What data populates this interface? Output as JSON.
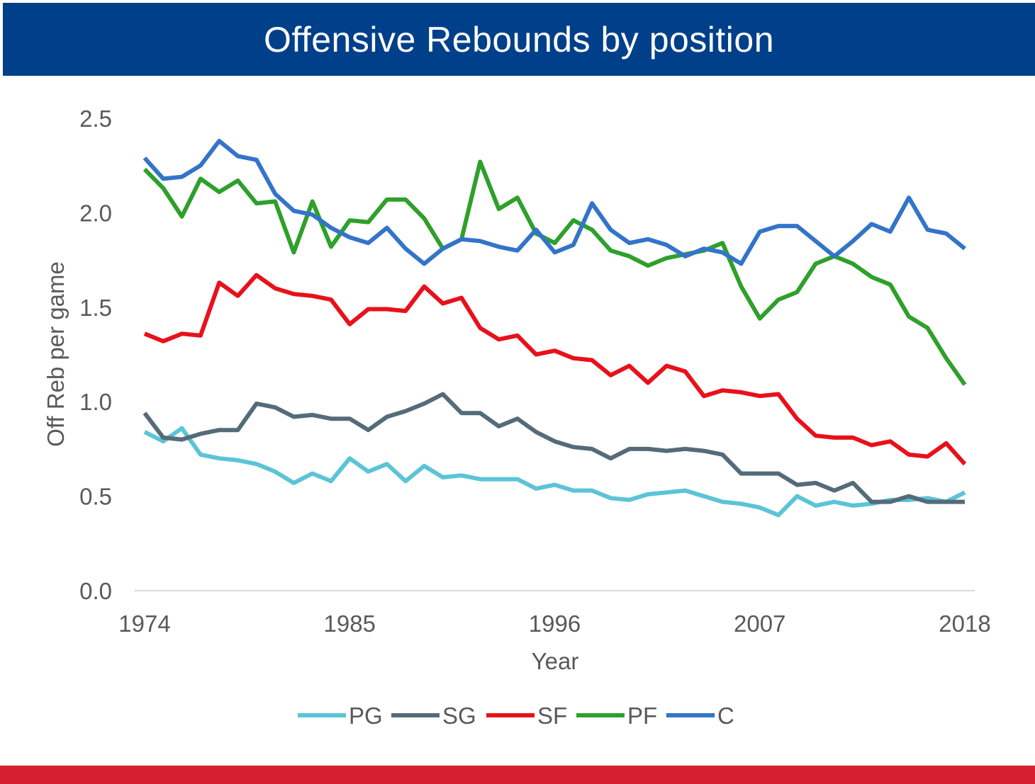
{
  "header": {
    "title": "Offensive Rebounds by position"
  },
  "colors": {
    "header_bg": "#003f8a",
    "footer_bar": "#d6202f",
    "PG": "#5bc4d6",
    "SG": "#546b79",
    "SF": "#e8111b",
    "PF": "#2ea02b",
    "C": "#3374c9"
  },
  "chart_data": {
    "type": "line",
    "title": "Offensive Rebounds by position",
    "xlabel": "Year",
    "ylabel": "Off Reb per game",
    "xlim": [
      1974,
      2018
    ],
    "ylim": [
      0,
      2.5
    ],
    "x_ticks": [
      "1974",
      "1985",
      "1996",
      "2007",
      "2018"
    ],
    "y_ticks": [
      "0.0",
      "0.5",
      "1.0",
      "1.5",
      "2.0",
      "2.5"
    ],
    "grid": "baseline only",
    "legend_position": "bottom",
    "x": [
      1974,
      1975,
      1976,
      1977,
      1978,
      1979,
      1980,
      1981,
      1982,
      1983,
      1984,
      1985,
      1986,
      1987,
      1988,
      1989,
      1990,
      1991,
      1992,
      1993,
      1994,
      1995,
      1996,
      1997,
      1998,
      1999,
      2000,
      2001,
      2002,
      2003,
      2004,
      2005,
      2006,
      2007,
      2008,
      2009,
      2010,
      2011,
      2012,
      2013,
      2014,
      2015,
      2016,
      2017,
      2018
    ],
    "series": [
      {
        "name": "PG",
        "values": [
          0.84,
          0.79,
          0.86,
          0.72,
          0.7,
          0.69,
          0.67,
          0.63,
          0.57,
          0.62,
          0.58,
          0.7,
          0.63,
          0.67,
          0.58,
          0.66,
          0.6,
          0.61,
          0.59,
          0.59,
          0.59,
          0.54,
          0.56,
          0.53,
          0.53,
          0.49,
          0.48,
          0.51,
          0.52,
          0.53,
          0.5,
          0.47,
          0.46,
          0.44,
          0.4,
          0.5,
          0.45,
          0.47,
          0.45,
          0.46,
          0.48,
          0.48,
          0.49,
          0.47,
          0.52
        ]
      },
      {
        "name": "SG",
        "values": [
          0.94,
          0.81,
          0.8,
          0.83,
          0.85,
          0.85,
          0.99,
          0.97,
          0.92,
          0.93,
          0.91,
          0.91,
          0.85,
          0.92,
          0.95,
          0.99,
          1.04,
          0.94,
          0.94,
          0.87,
          0.91,
          0.84,
          0.79,
          0.76,
          0.75,
          0.7,
          0.75,
          0.75,
          0.74,
          0.75,
          0.74,
          0.72,
          0.62,
          0.62,
          0.62,
          0.56,
          0.57,
          0.53,
          0.57,
          0.47,
          0.47,
          0.5,
          0.47,
          0.47,
          0.47
        ]
      },
      {
        "name": "SF",
        "values": [
          1.36,
          1.32,
          1.36,
          1.35,
          1.63,
          1.56,
          1.67,
          1.6,
          1.57,
          1.56,
          1.54,
          1.41,
          1.49,
          1.49,
          1.48,
          1.61,
          1.52,
          1.55,
          1.39,
          1.33,
          1.35,
          1.25,
          1.27,
          1.23,
          1.22,
          1.14,
          1.19,
          1.1,
          1.19,
          1.16,
          1.03,
          1.06,
          1.05,
          1.03,
          1.04,
          0.91,
          0.82,
          0.81,
          0.81,
          0.77,
          0.79,
          0.72,
          0.71,
          0.78,
          0.67
        ]
      },
      {
        "name": "PF",
        "values": [
          2.23,
          2.13,
          1.98,
          2.18,
          2.11,
          2.17,
          2.05,
          2.06,
          1.79,
          2.06,
          1.82,
          1.96,
          1.95,
          2.07,
          2.07,
          1.97,
          1.81,
          1.86,
          2.27,
          2.02,
          2.08,
          1.89,
          1.84,
          1.96,
          1.91,
          1.8,
          1.77,
          1.72,
          1.76,
          1.78,
          1.8,
          1.84,
          1.61,
          1.44,
          1.54,
          1.58,
          1.73,
          1.77,
          1.73,
          1.66,
          1.62,
          1.45,
          1.39,
          1.23,
          1.09
        ]
      },
      {
        "name": "C",
        "values": [
          2.29,
          2.18,
          2.19,
          2.25,
          2.38,
          2.3,
          2.28,
          2.1,
          2.01,
          1.99,
          1.92,
          1.87,
          1.84,
          1.92,
          1.81,
          1.73,
          1.81,
          1.86,
          1.85,
          1.82,
          1.8,
          1.91,
          1.79,
          1.83,
          2.05,
          1.91,
          1.84,
          1.86,
          1.83,
          1.77,
          1.81,
          1.79,
          1.73,
          1.9,
          1.93,
          1.93,
          1.85,
          1.77,
          1.85,
          1.94,
          1.9,
          2.08,
          1.91,
          1.89,
          1.81
        ]
      }
    ]
  }
}
